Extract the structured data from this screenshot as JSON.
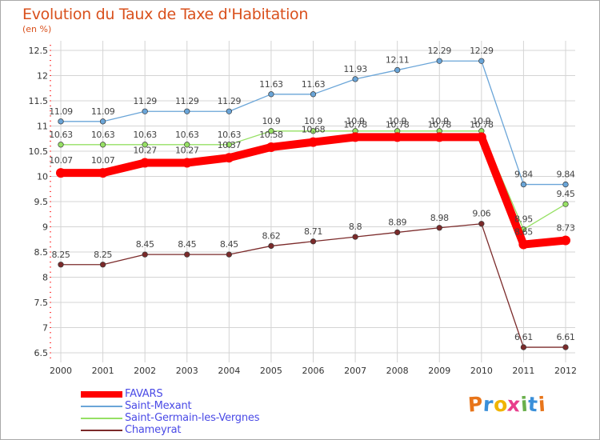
{
  "title": "Evolution du Taux de Taxe d'Habitation",
  "subtitle": "(en %)",
  "brand": {
    "text": "Proxiti",
    "letter_colors": [
      "#e8751a",
      "#3a8fd9",
      "#f0b400",
      "#e83e8c",
      "#6ab04c",
      "#3a8fd9",
      "#e8751a"
    ]
  },
  "colors": {
    "frame": "#a9a9a9",
    "grid": "#d4d4d4",
    "title": "#d9501c",
    "legend_text": "#4a4ae6",
    "axis_text": "#333333",
    "value_text": "#444444"
  },
  "chart_data": {
    "type": "line",
    "title": "Evolution du Taux de Taxe d'Habitation",
    "subtitle": "(en %)",
    "xlabel": "",
    "ylabel": "",
    "x": [
      "2000",
      "2001",
      "2002",
      "2003",
      "2004",
      "2005",
      "2006",
      "2007",
      "2008",
      "2009",
      "2010",
      "2011",
      "2012"
    ],
    "y_ticks": [
      "6.5",
      "7",
      "7.5",
      "8",
      "8.5",
      "9",
      "9.5",
      "10",
      "10.5",
      "11",
      "11.5",
      "12",
      "12.5"
    ],
    "ylim": [
      6.5,
      12.5
    ],
    "grid": true,
    "legend_position": "bottom-left",
    "series": [
      {
        "name": "FAVARS",
        "color": "#ff0000",
        "values": [
          10.07,
          10.07,
          10.27,
          10.27,
          10.37,
          10.58,
          10.68,
          10.78,
          10.78,
          10.78,
          10.78,
          8.65,
          8.73
        ],
        "labels": [
          "10.07",
          "10.07",
          "10.27",
          "10.27",
          "10.37",
          "10.58",
          "10.68",
          "10.78",
          "10.78",
          "10.78",
          "10.78",
          "8.65",
          "8.73"
        ]
      },
      {
        "name": "Saint-Mexant",
        "color": "#6aa5d8",
        "values": [
          11.09,
          11.09,
          11.29,
          11.29,
          11.29,
          11.63,
          11.63,
          11.93,
          12.11,
          12.29,
          12.29,
          9.84,
          9.84
        ],
        "labels": [
          "11.09",
          "11.09",
          "11.29",
          "11.29",
          "11.29",
          "11.63",
          "11.63",
          "11.93",
          "12.11",
          "12.29",
          "12.29",
          "9.84",
          "9.84"
        ]
      },
      {
        "name": "Saint-Germain-les-Vergnes",
        "color": "#96e064",
        "values": [
          10.63,
          10.63,
          10.63,
          10.63,
          10.63,
          10.9,
          10.9,
          10.9,
          10.9,
          10.9,
          10.9,
          8.95,
          9.45
        ],
        "labels": [
          "10.63",
          "10.63",
          "10.63",
          "10.63",
          "10.63",
          "10.9",
          "10.9",
          "10.9",
          "10.9",
          "10.9",
          "10.9",
          "8.95",
          "9.45"
        ]
      },
      {
        "name": "Chameyrat",
        "color": "#7b2a2a",
        "values": [
          8.25,
          8.25,
          8.45,
          8.45,
          8.45,
          8.62,
          8.71,
          8.8,
          8.89,
          8.98,
          9.06,
          6.61,
          6.61
        ],
        "labels": [
          "8.25",
          "8.25",
          "8.45",
          "8.45",
          "8.45",
          "8.62",
          "8.71",
          "8.8",
          "8.89",
          "8.98",
          "9.06",
          "6.61",
          "6.61"
        ]
      }
    ]
  }
}
